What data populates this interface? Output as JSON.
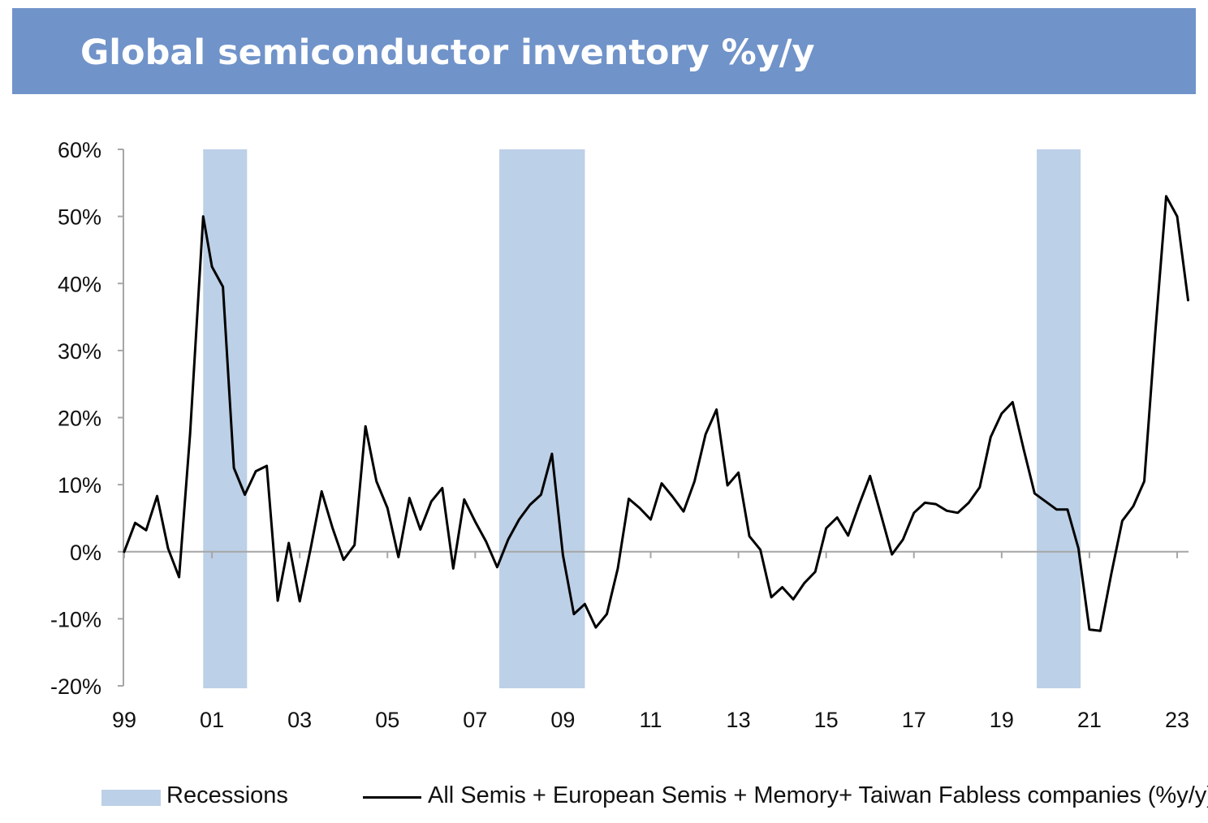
{
  "header": {
    "title": "Global semiconductor inventory %y/y"
  },
  "chart_data": {
    "type": "line",
    "title": "Global semiconductor inventory %y/y",
    "xlabel": "",
    "ylabel": "",
    "ylim": [
      -20,
      60
    ],
    "xlim": [
      1999.0,
      2023.3
    ],
    "y_ticks": [
      {
        "value": 60,
        "label": "60%"
      },
      {
        "value": 50,
        "label": "50%"
      },
      {
        "value": 40,
        "label": "40%"
      },
      {
        "value": 30,
        "label": "30%"
      },
      {
        "value": 20,
        "label": "20%"
      },
      {
        "value": 10,
        "label": "10%"
      },
      {
        "value": 0,
        "label": "0%"
      },
      {
        "value": -10,
        "label": "-10%"
      },
      {
        "value": -20,
        "label": "-20%"
      }
    ],
    "x_ticks": [
      {
        "value": 1999,
        "label": "99"
      },
      {
        "value": 2001,
        "label": "01"
      },
      {
        "value": 2003,
        "label": "03"
      },
      {
        "value": 2005,
        "label": "05"
      },
      {
        "value": 2007,
        "label": "07"
      },
      {
        "value": 2009,
        "label": "09"
      },
      {
        "value": 2011,
        "label": "11"
      },
      {
        "value": 2013,
        "label": "13"
      },
      {
        "value": 2015,
        "label": "15"
      },
      {
        "value": 2017,
        "label": "17"
      },
      {
        "value": 2019,
        "label": "19"
      },
      {
        "value": 2021,
        "label": "21"
      },
      {
        "value": 2023,
        "label": "23"
      }
    ],
    "recessions": [
      {
        "start": 2000.8,
        "end": 2001.8
      },
      {
        "start": 2007.55,
        "end": 2009.5
      },
      {
        "start": 2019.8,
        "end": 2020.8
      }
    ],
    "series": [
      {
        "name": "All Semis + European Semis + Memory+ Taiwan Fabless companies (%y/y)",
        "x": [
          1999.0,
          1999.25,
          1999.5,
          1999.75,
          2000.0,
          2000.25,
          2000.5,
          2000.8,
          2001.0,
          2001.25,
          2001.5,
          2001.75,
          2002.0,
          2002.25,
          2002.5,
          2002.75,
          2003.0,
          2003.25,
          2003.5,
          2003.75,
          2004.0,
          2004.25,
          2004.5,
          2004.75,
          2005.0,
          2005.25,
          2005.5,
          2005.75,
          2006.0,
          2006.25,
          2006.5,
          2006.75,
          2007.0,
          2007.25,
          2007.5,
          2007.75,
          2008.0,
          2008.25,
          2008.5,
          2008.75,
          2009.0,
          2009.25,
          2009.5,
          2009.75,
          2010.0,
          2010.25,
          2010.5,
          2010.75,
          2011.0,
          2011.25,
          2011.5,
          2011.75,
          2012.0,
          2012.25,
          2012.5,
          2012.75,
          2013.0,
          2013.25,
          2013.5,
          2013.75,
          2014.0,
          2014.25,
          2014.5,
          2014.75,
          2015.0,
          2015.25,
          2015.5,
          2015.75,
          2016.0,
          2016.25,
          2016.5,
          2016.75,
          2017.0,
          2017.25,
          2017.5,
          2017.75,
          2018.0,
          2018.25,
          2018.5,
          2018.75,
          2019.0,
          2019.25,
          2019.5,
          2019.75,
          2020.0,
          2020.25,
          2020.5,
          2020.75,
          2021.0,
          2021.25,
          2021.5,
          2021.75,
          2022.0,
          2022.25,
          2022.5,
          2022.75,
          2023.0,
          2023.25
        ],
        "values": [
          0,
          4.3,
          3.2,
          8.3,
          0.5,
          -3.8,
          17.5,
          50,
          42.5,
          39.5,
          12.5,
          8.5,
          12,
          12.8,
          -7.3,
          1.3,
          -7.4,
          0.5,
          9,
          3.5,
          -1.2,
          1,
          18.7,
          10.5,
          6.5,
          -0.8,
          8,
          3.3,
          7.5,
          9.5,
          -2.5,
          7.8,
          4.5,
          1.5,
          -2.3,
          1.8,
          4.8,
          7,
          8.5,
          14.6,
          -0.5,
          -9.3,
          -7.8,
          -11.3,
          -9.3,
          -2.5,
          7.9,
          6.5,
          4.8,
          10.2,
          8.2,
          6,
          10.5,
          17.5,
          21.2,
          9.9,
          11.8,
          2.3,
          0.3,
          -6.8,
          -5.3,
          -7.1,
          -4.7,
          -3,
          3.5,
          5.1,
          2.4,
          7,
          11.3,
          5.5,
          -0.4,
          1.8,
          5.8,
          7.3,
          7.1,
          6.1,
          5.8,
          7.3,
          9.6,
          17.1,
          20.6,
          22.3,
          15.3,
          8.7,
          7.5,
          6.3,
          6.3,
          0.5,
          -11.6,
          -11.8,
          -3.3,
          4.6,
          6.8,
          10.5,
          32.6,
          53,
          50,
          37.5
        ]
      }
    ],
    "legend": {
      "position": "bottom",
      "entries": [
        {
          "label": "Recessions",
          "kind": "band",
          "color": "#bcd0e7"
        },
        {
          "label": "All Semis + European Semis + Memory+ Taiwan Fabless companies (%y/y)",
          "kind": "line",
          "color": "#000000"
        }
      ]
    },
    "colors": {
      "recession": "#bcd0e7",
      "line": "#000000",
      "axis": "#a6a6a6",
      "title_bar": "#7093c9"
    }
  }
}
